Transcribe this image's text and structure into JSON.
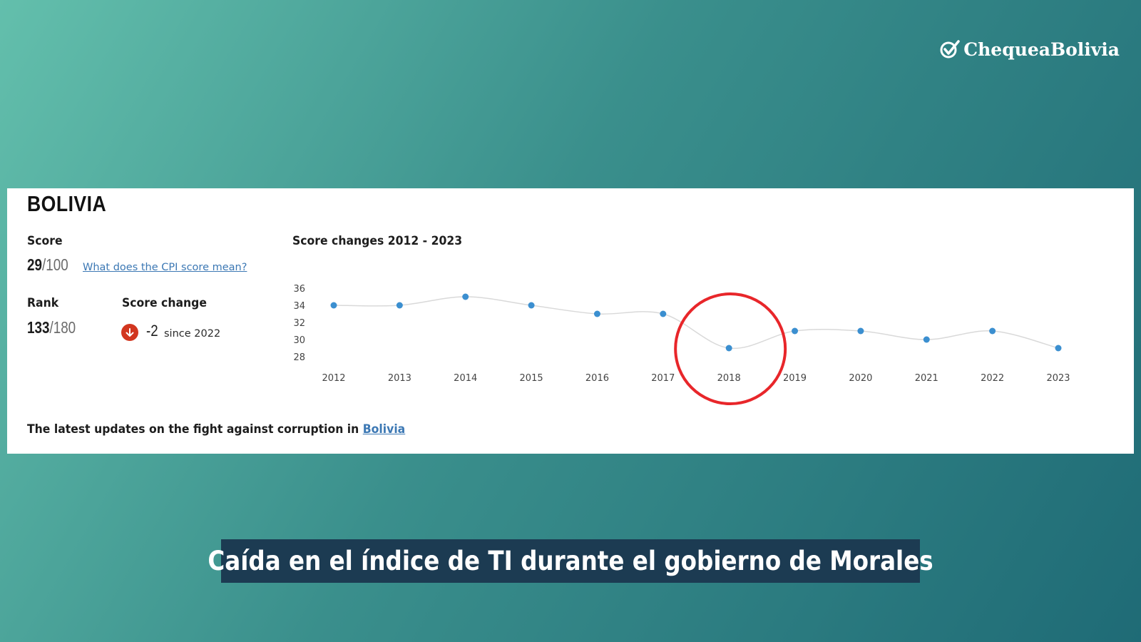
{
  "brand": {
    "name": "ChequeaBolivia"
  },
  "card": {
    "country": "BOLIVIA",
    "score_label": "Score",
    "score_value": "29",
    "score_max": "/100",
    "score_link": "What does the CPI score mean?",
    "rank_label": "Rank",
    "rank_value": "133",
    "rank_max": "/180",
    "change_label": "Score change",
    "change_value": "-2",
    "change_since": "since 2022",
    "footer_text": "The latest updates on the fight against corruption in",
    "footer_link": "Bolivia"
  },
  "chart_data": {
    "type": "line",
    "title": "Score changes 2012 - 2023",
    "x": [
      "2012",
      "2013",
      "2014",
      "2015",
      "2016",
      "2017",
      "2018",
      "2019",
      "2020",
      "2021",
      "2022",
      "2023"
    ],
    "series": [
      {
        "values": [
          34,
          34,
          35,
          34,
          33,
          33,
          29,
          31,
          31,
          30,
          31,
          29
        ]
      }
    ],
    "yticks": [
      28,
      30,
      32,
      34,
      36
    ],
    "ylim": [
      28,
      36
    ],
    "highlight": "2018",
    "colors": {
      "point": "#3b8fd0",
      "line": "#d9d9d9",
      "highlight_ring": "#e8262a"
    }
  },
  "caption": "Caída en el índice de TI durante el gobierno de Morales"
}
